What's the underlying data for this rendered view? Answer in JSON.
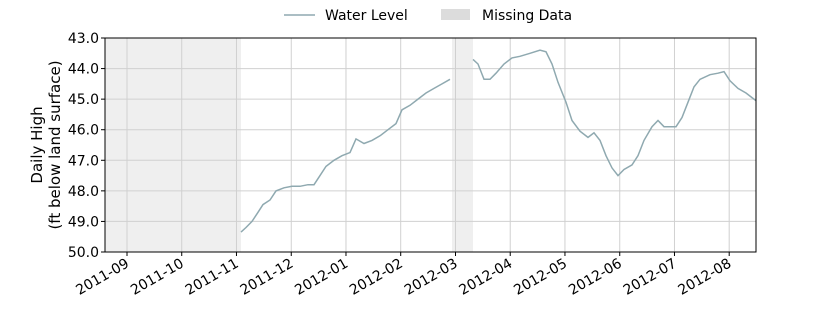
{
  "chart_data": {
    "type": "line",
    "y_label": [
      "Daily High",
      "(ft below land surface)"
    ],
    "xlim": [
      2011.6332,
      2012.6241
    ],
    "xticks": [
      {
        "value": 2011.6667,
        "label": "2011-09"
      },
      {
        "value": 2011.75,
        "label": "2011-10"
      },
      {
        "value": 2011.8333,
        "label": "2011-11"
      },
      {
        "value": 2011.9167,
        "label": "2011-12"
      },
      {
        "value": 2012.0,
        "label": "2012-01"
      },
      {
        "value": 2012.0833,
        "label": "2012-02"
      },
      {
        "value": 2012.1667,
        "label": "2012-03"
      },
      {
        "value": 2012.25,
        "label": "2012-04"
      },
      {
        "value": 2012.3333,
        "label": "2012-05"
      },
      {
        "value": 2012.4167,
        "label": "2012-06"
      },
      {
        "value": 2012.5,
        "label": "2012-07"
      },
      {
        "value": 2012.5833,
        "label": "2012-08"
      }
    ],
    "ylim": [
      50,
      43
    ],
    "yticks": [
      {
        "value": 43,
        "label": "43.0"
      },
      {
        "value": 44,
        "label": "44.0"
      },
      {
        "value": 45,
        "label": "45.0"
      },
      {
        "value": 46,
        "label": "46.0"
      },
      {
        "value": 47,
        "label": "47.0"
      },
      {
        "value": 48,
        "label": "48.0"
      },
      {
        "value": 49,
        "label": "49.0"
      },
      {
        "value": 50,
        "label": "50.0"
      }
    ],
    "grid": true,
    "legend": "top",
    "x": [
      2011.8402,
      2011.8478,
      2011.857,
      2011.8661,
      2011.8737,
      2011.8844,
      2011.8935,
      2011.9057,
      2011.9178,
      2011.93,
      2011.9422,
      2011.9513,
      2011.9605,
      2011.9696,
      2011.9818,
      2011.9939,
      2012.0061,
      2012.0153,
      2012.0274,
      2012.0396,
      2012.0518,
      2012.064,
      2012.0761,
      2012.0853,
      2012.0974,
      2012.1096,
      2012.1218,
      2012.134,
      2012.1462,
      2012.1583,
      2012.17,
      2012.1933,
      2012.2009,
      2012.2101,
      2012.2192,
      2012.2283,
      2012.2405,
      2012.2527,
      2012.2649,
      2012.2801,
      2012.2953,
      2012.3044,
      2012.3136,
      2012.3227,
      2012.3349,
      2012.344,
      2012.3562,
      2012.3684,
      2012.3775,
      2012.3866,
      2012.3958,
      2012.4049,
      2012.414,
      2012.4232,
      2012.4353,
      2012.4445,
      2012.4536,
      2012.4658,
      2012.4749,
      2012.4841,
      2012.4932,
      2012.5023,
      2012.5114,
      2012.5206,
      2012.5297,
      2012.5388,
      2012.5541,
      2012.5662,
      2012.5754,
      2012.5845,
      2012.5967,
      2012.6089,
      2012.618,
      2012.6241
    ],
    "series": [
      {
        "name": "Water Level",
        "color": "#8fa9b0",
        "values": [
          49.35,
          49.2,
          49.0,
          48.7,
          48.45,
          48.3,
          48.0,
          47.9,
          47.85,
          47.85,
          47.8,
          47.8,
          47.5,
          47.2,
          47.0,
          46.85,
          46.75,
          46.3,
          46.45,
          46.35,
          46.2,
          46.0,
          45.8,
          45.35,
          45.2,
          45.0,
          44.8,
          44.65,
          44.5,
          44.35,
          null,
          43.7,
          43.85,
          44.35,
          44.35,
          44.15,
          43.85,
          43.65,
          43.6,
          43.5,
          43.4,
          43.45,
          43.85,
          44.45,
          45.1,
          45.7,
          46.05,
          46.25,
          46.1,
          46.35,
          46.85,
          47.25,
          47.5,
          47.3,
          47.15,
          46.85,
          46.35,
          45.9,
          45.7,
          45.9,
          45.9,
          45.9,
          45.6,
          45.1,
          44.6,
          44.35,
          44.2,
          44.15,
          44.1,
          44.4,
          44.65,
          44.8,
          44.95,
          45.05
        ]
      }
    ],
    "spans": {
      "name": "Missing Data",
      "color": "#efefef",
      "ranges": [
        [
          2011.6332,
          2011.8402
        ],
        [
          2012.1614,
          2012.1933
        ]
      ]
    }
  }
}
